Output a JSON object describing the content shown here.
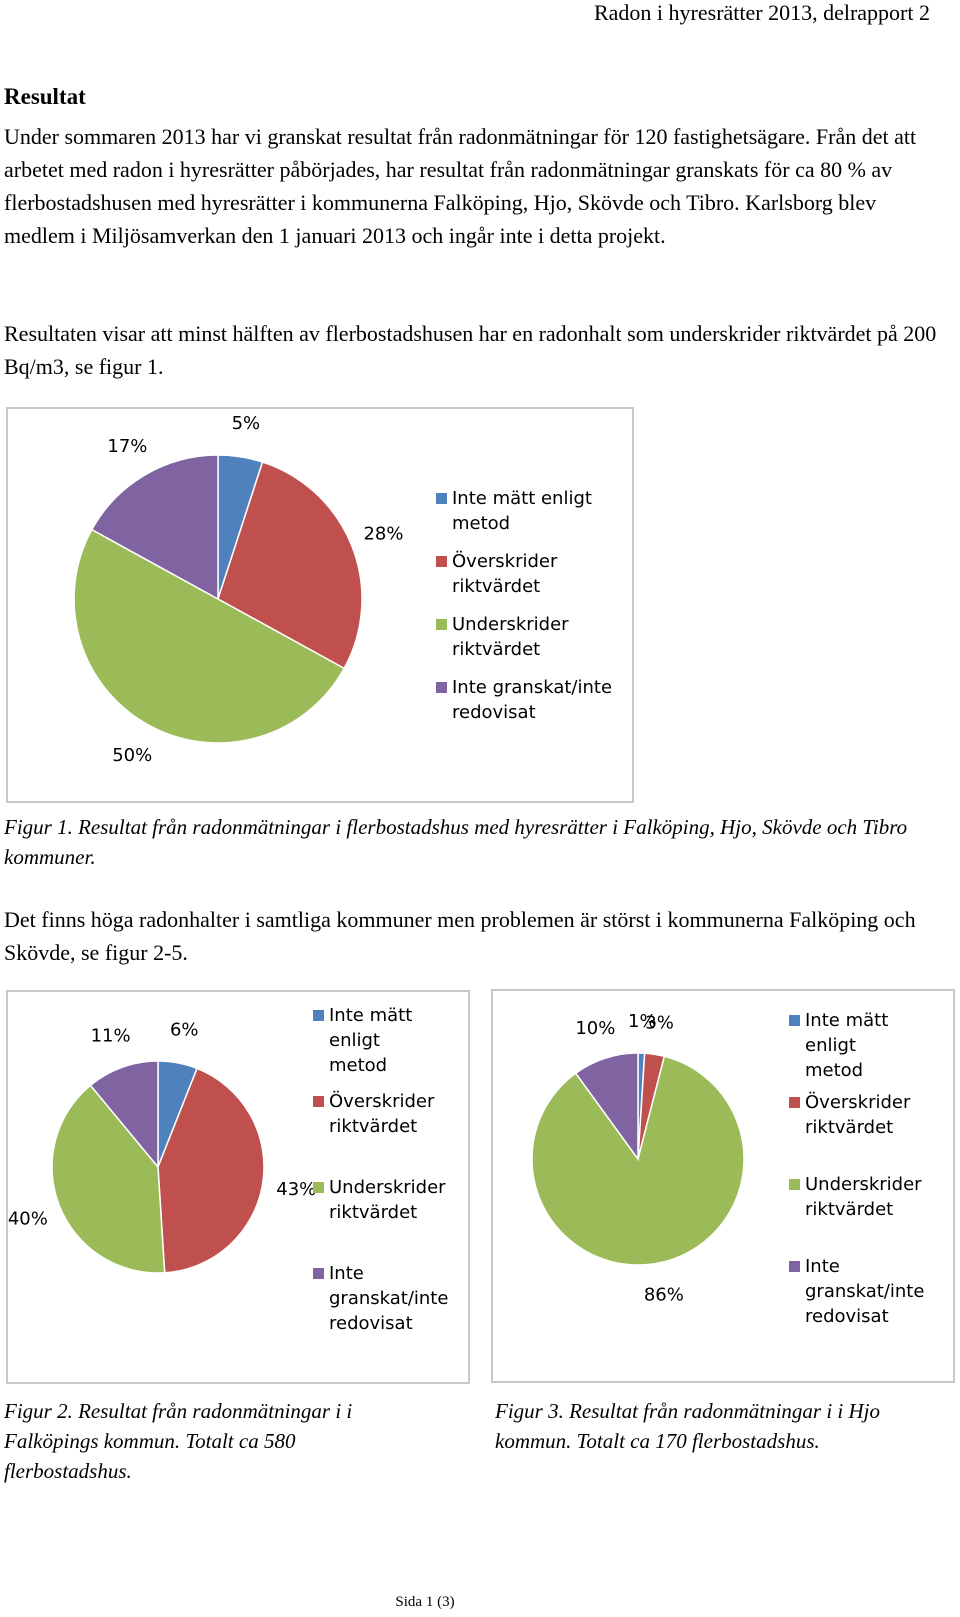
{
  "header": {
    "title": "Radon i hyresrätter 2013, delrapport 2"
  },
  "heading": "Resultat",
  "paragraphs": {
    "p1": "Under sommaren 2013 har vi granskat resultat från radonmätningar för 120 fastighetsägare. Från det att arbetet med radon i hyresrätter påbörjades, har resultat från radonmätningar granskats för ca 80 % av flerbostadshusen med hyresrätter i kommunerna Falköping, Hjo, Skövde och Tibro. Karlsborg blev medlem i Miljösamverkan den 1 januari 2013 och ingår inte i detta projekt.",
    "p2": "Resultaten visar att minst hälften av flerbostadshusen har en radonhalt som underskrider riktvärdet på 200 Bq/m3, se figur 1.",
    "p3": "Det finns höga radonhalter i samtliga kommuner men problemen är störst i kommunerna Falköping och Skövde, se figur 2-5."
  },
  "captions": {
    "fig1": "Figur 1. Resultat från radonmätningar i flerbostadshus med hyresrätter i Falköping, Hjo, Skövde och Tibro kommuner.",
    "fig2": "Figur 2. Resultat från radonmätningar i i Falköpings kommun. Totalt ca 580 flerbostadshus.",
    "fig3": "Figur 3. Resultat från radonmätningar i i Hjo kommun. Totalt ca 170 flerbostadshus."
  },
  "footer": {
    "page": "Sida 1 (3)"
  },
  "colors": {
    "blue": "#4f81bd",
    "red": "#c0504d",
    "green": "#9bbb59",
    "purple": "#8064a2"
  },
  "chart_data": [
    {
      "type": "pie",
      "labels": [
        "Inte mätt enligt metod",
        "Överskrider riktvärdet",
        "Underskrider riktvärdet",
        "Inte granskat/inte redovisat"
      ],
      "values": [
        5,
        28,
        50,
        17
      ],
      "data_labels": [
        "5%",
        "28%",
        "50%",
        "17%"
      ],
      "colors": [
        "#4f81bd",
        "#c0504d",
        "#9bbb59",
        "#8064a2"
      ],
      "legend_position": "right"
    },
    {
      "type": "pie",
      "labels": [
        "Inte mätt enligt metod",
        "Överskrider riktvärdet",
        "Underskrider riktvärdet",
        "Inte granskat/inte redovisat"
      ],
      "values": [
        6,
        43,
        40,
        11
      ],
      "data_labels": [
        "6%",
        "43%",
        "40%",
        "11%"
      ],
      "colors": [
        "#4f81bd",
        "#c0504d",
        "#9bbb59",
        "#8064a2"
      ],
      "legend_position": "right"
    },
    {
      "type": "pie",
      "labels": [
        "Inte mätt enligt metod",
        "Överskrider riktvärdet",
        "Underskrider riktvärdet",
        "Inte granskat/inte redovisat"
      ],
      "values": [
        1,
        3,
        86,
        10
      ],
      "data_labels": [
        "1%",
        "3%",
        "86%",
        "10%"
      ],
      "colors": [
        "#4f81bd",
        "#c0504d",
        "#9bbb59",
        "#8064a2"
      ],
      "legend_position": "right"
    }
  ]
}
